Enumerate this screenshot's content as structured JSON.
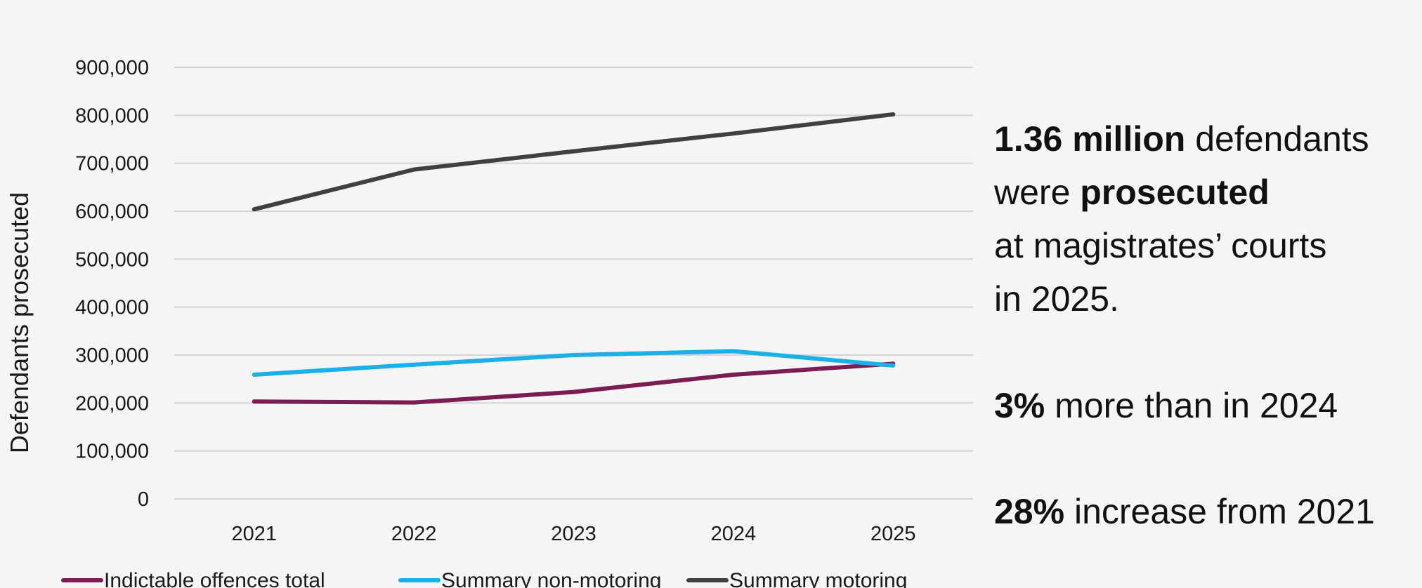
{
  "chart_data": {
    "type": "line",
    "title": "",
    "xlabel": "",
    "ylabel": "Defendants prosecuted",
    "categories": [
      "2021",
      "2022",
      "2023",
      "2024",
      "2025"
    ],
    "ylim": [
      0,
      900000
    ],
    "yticks": [
      0,
      100000,
      200000,
      300000,
      400000,
      500000,
      600000,
      700000,
      800000,
      900000
    ],
    "ytick_labels": [
      "0",
      "100,000",
      "200,000",
      "300,000",
      "400,000",
      "500,000",
      "600,000",
      "700,000",
      "800,000",
      "900,000"
    ],
    "grid": true,
    "legend_position": "bottom",
    "series": [
      {
        "name": "Indictable offences total",
        "color": "#7b1c52",
        "values": [
          203000,
          201000,
          223000,
          259000,
          282000
        ]
      },
      {
        "name": "Summary non-motoring",
        "color": "#1ab0e8",
        "values": [
          259000,
          280000,
          300000,
          308000,
          278000
        ]
      },
      {
        "name": "Summary motoring",
        "color": "#404040",
        "values": [
          604000,
          687000,
          725000,
          762000,
          802000
        ]
      }
    ]
  },
  "facts": {
    "f1_bold": "1.36 million",
    "f1_rest": " defendants",
    "f2_pre": "were ",
    "f2_bold": "prosecuted",
    "f3": "at magistrates’ courts",
    "f4": "in 2025.",
    "f5_bold": "3%",
    "f5_rest": " more than in 2024",
    "f6_bold": "28%",
    "f6_rest": " increase from 2021"
  }
}
